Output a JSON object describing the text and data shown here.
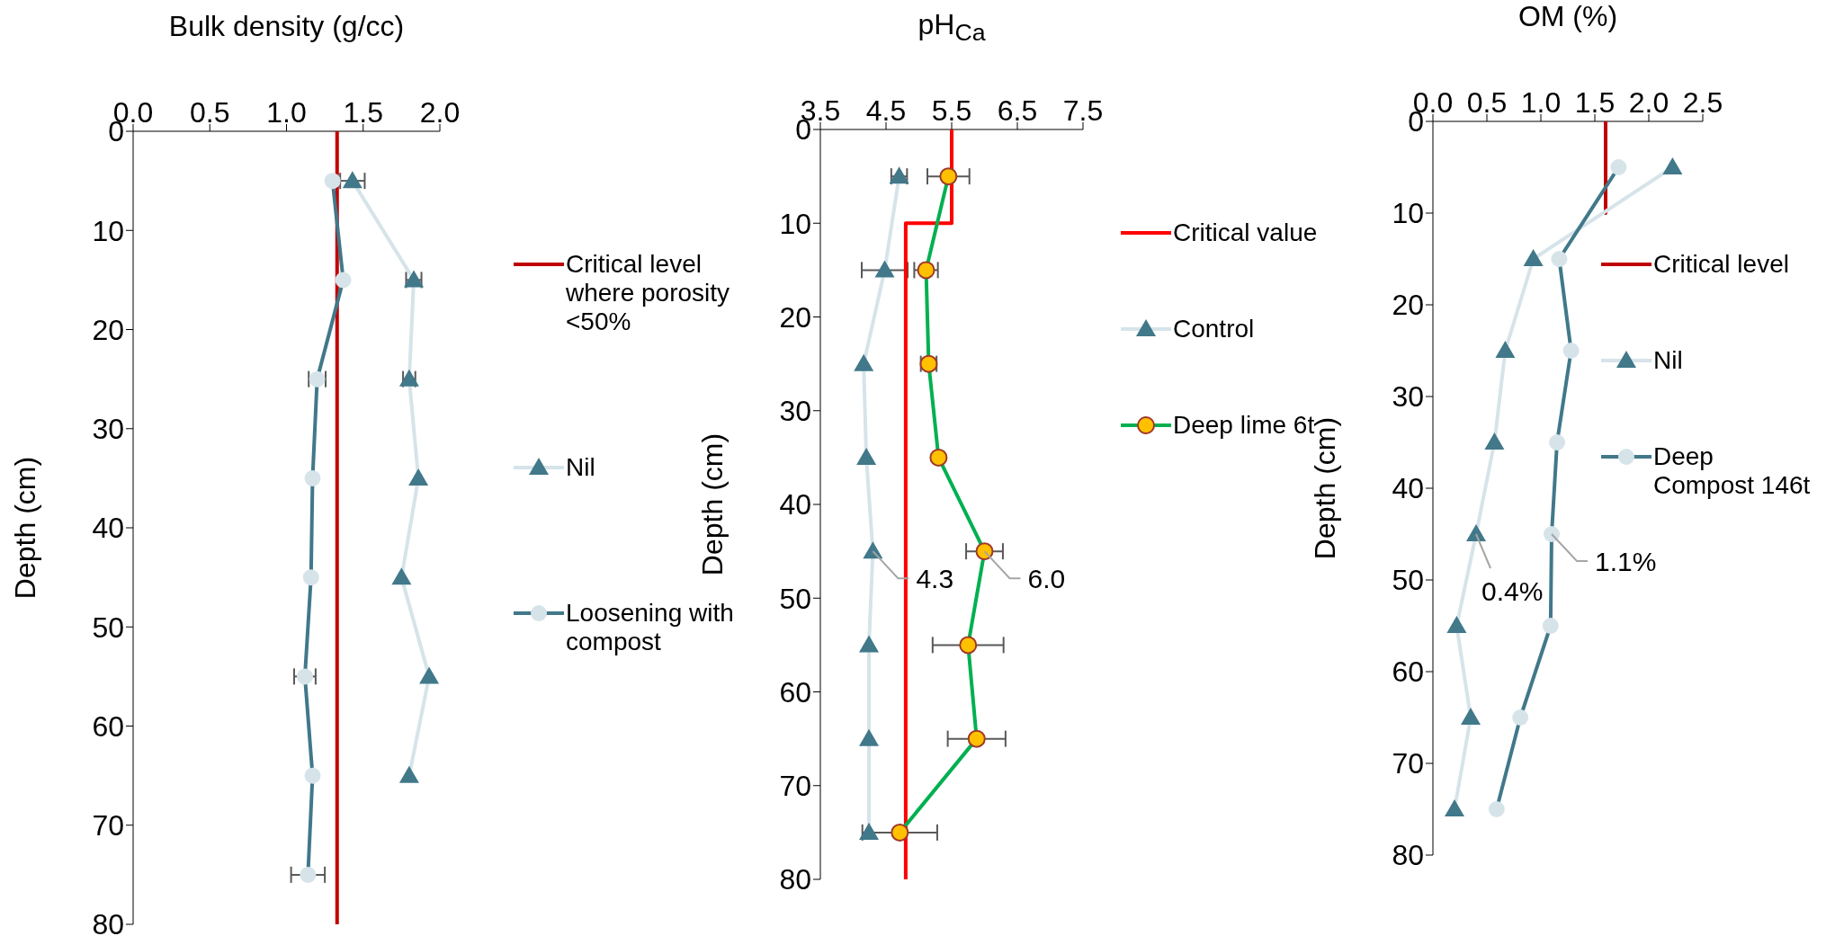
{
  "chart_data": [
    {
      "type": "line",
      "xlabel": "Bulk density (g/cc)",
      "ylabel": "Depth (cm)",
      "xlim": [
        0,
        2
      ],
      "xticks": [
        {
          "value": 0,
          "label": "0.0"
        },
        0.5,
        {
          "value": 1,
          "label": "1.0"
        },
        1.5,
        {
          "value": 2,
          "label": "2.0"
        }
      ],
      "ylim": [
        80,
        0
      ],
      "yticks": [
        0,
        10,
        20,
        30,
        40,
        50,
        60,
        70,
        80
      ],
      "legend": "right",
      "series": [
        {
          "name": "Critical level where porosity <50%",
          "color": "#c00000",
          "marker": "none",
          "x": [
            1.33,
            1.33
          ],
          "values": [
            0,
            80
          ]
        },
        {
          "name": "Nil",
          "color": "#d6e4ea",
          "colors": [
            "#41788a",
            "#41788a",
            "#41788a",
            "#41788a",
            "#41788a",
            "#41788a",
            "#41788a"
          ],
          "marker": "triangle",
          "x": [
            1.43,
            1.83,
            1.8,
            1.86,
            1.75,
            1.93,
            1.8
          ],
          "values": [
            5,
            15,
            25,
            35,
            45,
            55,
            65
          ],
          "xerrors": [
            0.08,
            0.05,
            0.04,
            null,
            null,
            null,
            null
          ]
        },
        {
          "name": "Loosening with compost",
          "color": "#41788a",
          "colors": [
            "#d6e4ea",
            "#d6e4ea",
            "#d6e4ea",
            "#d6e4ea",
            "#d6e4ea",
            "#d6e4ea",
            "#d6e4ea",
            "#d6e4ea"
          ],
          "marker": "circle",
          "x": [
            1.3,
            1.37,
            1.2,
            1.17,
            1.16,
            1.12,
            1.17,
            1.14
          ],
          "values": [
            5,
            15,
            25,
            35,
            45,
            55,
            65,
            75
          ],
          "xerrors": [
            null,
            null,
            0.055,
            null,
            null,
            0.07,
            null,
            0.11
          ]
        }
      ]
    },
    {
      "type": "line",
      "xlabel": "pH$_{Ca}$",
      "ylabel": "Depth (cm)",
      "xlim": [
        3.5,
        7.5
      ],
      "xticks": [
        3.5,
        4.5,
        5.5,
        6.5,
        7.5
      ],
      "ylim": [
        80,
        0
      ],
      "yticks": [
        0,
        10,
        20,
        30,
        40,
        50,
        60,
        70,
        80
      ],
      "legend": "right",
      "annotations": [
        {
          "text": "4.3",
          "x": 4.3,
          "y": 45
        },
        {
          "text": "6.0",
          "x": 6.0,
          "y": 45
        }
      ],
      "series": [
        {
          "name": "Critical value",
          "color": "#ff0000",
          "marker": "none",
          "x": [
            5.5,
            5.5,
            4.8,
            4.8
          ],
          "values": [
            0,
            10,
            10,
            80
          ]
        },
        {
          "name": "Control",
          "color": "#d6e4ea",
          "colors": [
            "#41788a",
            "#41788a",
            "#41788a",
            "#41788a",
            "#41788a",
            "#41788a",
            "#41788a",
            "#41788a"
          ],
          "marker": "triangle",
          "x": [
            4.7,
            4.48,
            4.16,
            4.2,
            4.3,
            4.24,
            4.24,
            4.24
          ],
          "values": [
            5,
            15,
            25,
            35,
            45,
            55,
            65,
            75
          ],
          "xerrors": [
            0.12,
            0.35,
            null,
            null,
            null,
            null,
            null,
            null
          ]
        },
        {
          "name": "Deep lime 6t",
          "color": "#00b050",
          "colors": [
            "#ffc000",
            "#ffc000",
            "#ffc000",
            "#ffc000",
            "#ffc000",
            "#ffc000",
            "#ffc000",
            "#ffc000"
          ],
          "marker": "circle",
          "x": [
            5.45,
            5.11,
            5.15,
            5.3,
            6.0,
            5.75,
            5.88,
            4.71
          ],
          "values": [
            5,
            15,
            25,
            35,
            45,
            55,
            65,
            75
          ],
          "xerrors": [
            0.32,
            0.18,
            0.12,
            null,
            0.28,
            0.54,
            0.44,
            0.57
          ]
        }
      ]
    },
    {
      "type": "line",
      "xlabel": "OM (%)",
      "ylabel": "Depth (cm)",
      "xlim": [
        0,
        2.5
      ],
      "xticks": [
        {
          "value": 0,
          "label": "0.0"
        },
        0.5,
        {
          "value": 1,
          "label": "1.0"
        },
        1.5,
        {
          "value": 2,
          "label": "2.0"
        },
        2.5
      ],
      "ylim": [
        80,
        0
      ],
      "yticks": [
        0,
        10,
        20,
        30,
        40,
        50,
        60,
        70,
        80
      ],
      "legend": "right",
      "annotations": [
        {
          "text": "0.4%",
          "x": 0.4,
          "y": 45
        },
        {
          "text": "1.1%",
          "x": 1.1,
          "y": 45
        }
      ],
      "series": [
        {
          "name": "Critical level",
          "color": "#c00000",
          "marker": "none",
          "x": [
            1.6,
            1.6
          ],
          "values": [
            0,
            10
          ]
        },
        {
          "name": "Nil",
          "color": "#d6e4ea",
          "colors": [
            "#41788a",
            "#41788a",
            "#41788a",
            "#41788a",
            "#41788a",
            "#41788a",
            "#41788a",
            "#41788a"
          ],
          "marker": "triangle",
          "x": [
            2.22,
            0.93,
            0.67,
            0.57,
            0.4,
            0.22,
            0.35,
            0.2
          ],
          "values": [
            5,
            15,
            25,
            35,
            45,
            55,
            65,
            75
          ]
        },
        {
          "name": "Deep Compost 146t",
          "color": "#41788a",
          "colors": [
            "#d6e4ea",
            "#d6e4ea",
            "#d6e4ea",
            "#d6e4ea",
            "#d6e4ea",
            "#d6e4ea",
            "#d6e4ea",
            "#d6e4ea"
          ],
          "marker": "circle",
          "x": [
            1.72,
            1.17,
            1.28,
            1.15,
            1.1,
            1.09,
            0.81,
            0.59
          ],
          "values": [
            5,
            15,
            25,
            35,
            45,
            55,
            65,
            75
          ]
        }
      ]
    }
  ]
}
